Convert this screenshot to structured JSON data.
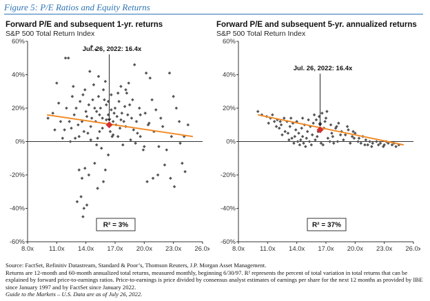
{
  "figure_title": "Figure 5: P/E Ratios and Equity Returns",
  "colors": {
    "title_blue": "#2e74b5",
    "scatter": "#555555",
    "trend": "#f28c28",
    "current": "#d32f2f",
    "axis": "#333333"
  },
  "chart_data": [
    {
      "type": "scatter",
      "title": "Forward P/E and subsequent 1-yr. returns",
      "subtitle": "S&P 500 Total Return Index",
      "xlim": [
        8.0,
        26.0
      ],
      "ylim": [
        -60,
        60
      ],
      "x_ticks": [
        8,
        11,
        14,
        17,
        20,
        23,
        26
      ],
      "x_tick_labels": [
        "8.0x",
        "11.0x",
        "14.0x",
        "17.0x",
        "20.0x",
        "23.0x",
        "26.0x"
      ],
      "y_ticks": [
        60,
        40,
        20,
        0,
        -20,
        -40,
        -60
      ],
      "y_tick_labels": [
        "60%",
        "40%",
        "20%",
        "0%",
        "-20%",
        "-40%",
        "-60%"
      ],
      "annotation": "Jul. 26, 2022: 16.4x",
      "current_point": {
        "x": 16.4,
        "y": 10
      },
      "trendline": {
        "x": [
          10.0,
          25.0
        ],
        "y": [
          16,
          3
        ]
      },
      "r_squared_label": "R² = 3%",
      "points": [
        [
          10.1,
          14
        ],
        [
          10.6,
          17
        ],
        [
          11.2,
          23
        ],
        [
          11.8,
          7
        ],
        [
          11.0,
          35
        ],
        [
          11.9,
          50
        ],
        [
          12.2,
          50
        ],
        [
          12.7,
          33
        ],
        [
          12.5,
          8
        ],
        [
          12.3,
          12
        ],
        [
          13.0,
          20
        ],
        [
          13.4,
          24
        ],
        [
          13.7,
          28
        ],
        [
          13.2,
          10
        ],
        [
          13.9,
          31
        ],
        [
          14.1,
          15
        ],
        [
          14.5,
          9
        ],
        [
          14.2,
          5
        ],
        [
          14.7,
          25
        ],
        [
          14.8,
          34
        ],
        [
          14.4,
          42
        ],
        [
          14.6,
          57
        ],
        [
          15.0,
          55
        ],
        [
          15.3,
          39
        ],
        [
          15.1,
          18
        ],
        [
          15.5,
          20
        ],
        [
          15.7,
          14
        ],
        [
          15.2,
          2
        ],
        [
          15.9,
          25
        ],
        [
          16.1,
          22
        ],
        [
          16.3,
          16
        ],
        [
          16.4,
          9
        ],
        [
          16.6,
          19
        ],
        [
          16.8,
          12
        ],
        [
          17.0,
          20
        ],
        [
          17.2,
          15
        ],
        [
          17.4,
          24
        ],
        [
          17.5,
          8
        ],
        [
          17.7,
          17
        ],
        [
          17.9,
          12
        ],
        [
          18.2,
          29
        ],
        [
          18.5,
          22
        ],
        [
          18.1,
          9
        ],
        [
          18.7,
          14
        ],
        [
          18.9,
          7
        ],
        [
          18.4,
          35
        ],
        [
          19.0,
          46
        ],
        [
          19.3,
          5
        ],
        [
          19.6,
          3
        ],
        [
          19.9,
          -5
        ],
        [
          20.2,
          41
        ],
        [
          20.6,
          38
        ],
        [
          20.4,
          10
        ],
        [
          20.8,
          25
        ],
        [
          21.2,
          19
        ],
        [
          21.5,
          -3
        ],
        [
          21.9,
          9
        ],
        [
          22.3,
          -5
        ],
        [
          22.6,
          41
        ],
        [
          23.0,
          27
        ],
        [
          23.3,
          20
        ],
        [
          23.6,
          12
        ],
        [
          23.9,
          -13
        ],
        [
          24.2,
          -18
        ],
        [
          24.5,
          10
        ],
        [
          23.1,
          -27
        ],
        [
          22.7,
          -22
        ],
        [
          22.1,
          -14
        ],
        [
          21.4,
          -20
        ],
        [
          20.9,
          -22
        ],
        [
          20.3,
          -24
        ],
        [
          20.0,
          -3
        ],
        [
          19.1,
          -1
        ],
        [
          16.3,
          -8
        ],
        [
          15.6,
          -4
        ],
        [
          14.9,
          -13
        ],
        [
          14.3,
          -20
        ],
        [
          13.9,
          -16
        ],
        [
          13.6,
          -22
        ],
        [
          13.3,
          -17
        ],
        [
          13.5,
          -33
        ],
        [
          13.1,
          -36
        ],
        [
          13.8,
          -40
        ],
        [
          14.1,
          -38
        ],
        [
          13.7,
          -45
        ],
        [
          15.2,
          -28
        ],
        [
          15.8,
          -24
        ],
        [
          16.0,
          -17
        ],
        [
          14.5,
          1
        ],
        [
          13.3,
          3
        ],
        [
          12.9,
          2
        ],
        [
          12.4,
          0
        ],
        [
          11.6,
          2
        ],
        [
          17.3,
          3
        ],
        [
          18.6,
          1
        ],
        [
          17.8,
          -2
        ],
        [
          16.8,
          4
        ],
        [
          15.4,
          6
        ],
        [
          16.6,
          28
        ],
        [
          15.8,
          31
        ],
        [
          17.6,
          33
        ],
        [
          18.8,
          25
        ],
        [
          19.6,
          16
        ],
        [
          20.5,
          11
        ],
        [
          21.7,
          14
        ],
        [
          22.8,
          3
        ],
        [
          23.7,
          -1
        ],
        [
          24.1,
          3
        ],
        [
          21.0,
          6
        ],
        [
          14.0,
          18
        ],
        [
          13.6,
          12
        ],
        [
          14.3,
          22
        ],
        [
          15.0,
          12
        ],
        [
          15.4,
          16
        ],
        [
          15.7,
          8
        ],
        [
          16.1,
          13
        ],
        [
          16.5,
          6
        ],
        [
          16.9,
          17
        ],
        [
          17.1,
          10
        ],
        [
          17.6,
          13
        ],
        [
          18.0,
          21
        ],
        [
          18.3,
          16
        ],
        [
          19.2,
          12
        ],
        [
          19.5,
          20
        ],
        [
          20.1,
          17
        ],
        [
          12.0,
          20
        ],
        [
          12.8,
          16
        ],
        [
          11.4,
          12
        ],
        [
          10.8,
          7
        ],
        [
          14.6,
          14
        ],
        [
          17.3,
          29
        ],
        [
          18.1,
          31
        ],
        [
          15.3,
          27
        ],
        [
          16.0,
          36
        ],
        [
          16.7,
          3
        ],
        [
          15.1,
          -2
        ],
        [
          12.6,
          27
        ],
        [
          13.8,
          6
        ],
        [
          14.9,
          20
        ],
        [
          16.3,
          24
        ]
      ]
    },
    {
      "type": "scatter",
      "title": "Forward P/E and subsequent 5-yr. annualized returns",
      "subtitle": "S&P 500 Total Return Index",
      "xlim": [
        8.0,
        26.0
      ],
      "ylim": [
        -60,
        60
      ],
      "x_ticks": [
        8,
        11,
        14,
        17,
        20,
        23,
        26
      ],
      "x_tick_labels": [
        "8.0x",
        "11.0x",
        "14.0x",
        "17.0x",
        "20.0x",
        "23.0x",
        "26.0x"
      ],
      "y_ticks": [
        60,
        40,
        20,
        0,
        -20,
        -40,
        -60
      ],
      "y_tick_labels": [
        "60%",
        "40%",
        "20%",
        "0%",
        "-20%",
        "-40%",
        "-60%"
      ],
      "annotation": "Jul. 26, 2022: 16.4x",
      "current_point": {
        "x": 16.4,
        "y": 7
      },
      "trendline": {
        "x": [
          10.0,
          25.0
        ],
        "y": [
          16,
          -2
        ]
      },
      "r_squared_label": "R² = 37%",
      "points": [
        [
          10.0,
          18
        ],
        [
          10.4,
          16
        ],
        [
          10.9,
          15
        ],
        [
          11.3,
          14
        ],
        [
          11.7,
          12
        ],
        [
          11.5,
          16
        ],
        [
          12.0,
          13
        ],
        [
          12.4,
          10
        ],
        [
          12.7,
          14
        ],
        [
          12.2,
          8
        ],
        [
          13.0,
          12
        ],
        [
          13.3,
          9
        ],
        [
          13.6,
          11
        ],
        [
          13.9,
          7
        ],
        [
          14.2,
          5
        ],
        [
          14.5,
          8
        ],
        [
          14.8,
          10
        ],
        [
          15.1,
          6
        ],
        [
          15.4,
          9
        ],
        [
          15.7,
          11
        ],
        [
          16.0,
          13
        ],
        [
          16.3,
          15
        ],
        [
          16.6,
          17
        ],
        [
          16.9,
          12
        ],
        [
          17.1,
          18
        ],
        [
          16.8,
          8
        ],
        [
          16.2,
          6
        ],
        [
          15.6,
          4
        ],
        [
          15.0,
          2
        ],
        [
          14.4,
          1
        ],
        [
          13.8,
          3
        ],
        [
          13.5,
          2
        ],
        [
          14.1,
          0
        ],
        [
          14.7,
          -1
        ],
        [
          15.3,
          0
        ],
        [
          15.9,
          1
        ],
        [
          16.5,
          -1
        ],
        [
          17.2,
          2
        ],
        [
          17.6,
          5
        ],
        [
          18.0,
          8
        ],
        [
          18.3,
          11
        ],
        [
          18.6,
          6
        ],
        [
          19.0,
          4
        ],
        [
          19.3,
          7
        ],
        [
          19.7,
          3
        ],
        [
          20.0,
          5
        ],
        [
          20.4,
          2
        ],
        [
          20.8,
          3
        ],
        [
          21.1,
          1
        ],
        [
          21.5,
          0
        ],
        [
          21.8,
          -1
        ],
        [
          22.2,
          0
        ],
        [
          22.6,
          -1
        ],
        [
          23.0,
          -2
        ],
        [
          23.4,
          -1
        ],
        [
          23.8,
          -2
        ],
        [
          24.2,
          -3
        ],
        [
          24.5,
          -2
        ],
        [
          22.9,
          -3
        ],
        [
          21.3,
          -2
        ],
        [
          19.5,
          -1
        ],
        [
          18.8,
          1
        ],
        [
          18.2,
          0
        ],
        [
          17.8,
          -1
        ],
        [
          17.4,
          0
        ],
        [
          16.7,
          -2
        ],
        [
          15.5,
          -2
        ],
        [
          14.9,
          -3
        ],
        [
          14.3,
          -2
        ],
        [
          13.7,
          -1
        ],
        [
          13.2,
          1
        ],
        [
          12.8,
          6
        ],
        [
          12.5,
          4
        ],
        [
          11.9,
          9
        ],
        [
          11.1,
          11
        ],
        [
          12.3,
          12
        ],
        [
          13.4,
          14
        ],
        [
          14.0,
          12
        ],
        [
          14.6,
          14
        ],
        [
          15.2,
          13
        ],
        [
          15.8,
          16
        ],
        [
          16.4,
          11
        ],
        [
          17.0,
          14
        ],
        [
          17.5,
          10
        ],
        [
          18.1,
          9
        ],
        [
          18.5,
          4
        ],
        [
          19.2,
          9
        ],
        [
          19.8,
          6
        ],
        [
          20.3,
          0
        ],
        [
          20.6,
          -1
        ],
        [
          21.0,
          -2
        ],
        [
          21.7,
          -3
        ],
        [
          22.4,
          -2
        ],
        [
          23.2,
          0
        ],
        [
          24.0,
          -1
        ],
        [
          13.1,
          5
        ],
        [
          14.6,
          3
        ],
        [
          16.1,
          3
        ],
        [
          17.7,
          3
        ],
        [
          19.9,
          2
        ]
      ]
    }
  ],
  "footnotes": [
    "Source: FactSet, Refinitiv Datastream, Standard & Poor’s, Thomson Reuters, J.P. Morgan Asset Management.",
    "Returns are 12-month and 60-month annualized total returns, measured monthly, beginning 6/30/97. R² represents the percent of total variation in total returns that can be",
    "explained by forward price-to-earnings ratios. Price-to-earnings is price divided by consensus analyst estimates of earnings per share for the next 12 months as provided by IBES",
    "since January 1997 and by FactSet since January 2022.",
    "Guide to the Markets – U.S. Data are as of July 26, 2022."
  ]
}
